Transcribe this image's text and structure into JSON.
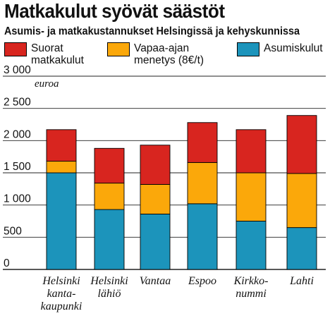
{
  "title": "Matkakulut syövät säästöt",
  "subtitle": "Asumis- ja matkakustannukset Helsingissä ja kehyskunnissa",
  "colors": {
    "suorat": "#d8251f",
    "vapaa": "#fba80a",
    "asumis": "#1c94bb",
    "grid": "#222222"
  },
  "legend": [
    {
      "label": "Suorat\nmatkakulut",
      "color": "#d8251f"
    },
    {
      "label": "Vapaa-ajan\nmenetys (8€/t)",
      "color": "#fba80a"
    },
    {
      "label": "Asumiskulut",
      "color": "#1c94bb"
    }
  ],
  "chart_data": {
    "type": "bar",
    "stacked": true,
    "categories": [
      "Helsinki\nkanta-\nkaupunki",
      "Helsinki\nlähiö",
      "Vantaa",
      "Espoo",
      "Kirkko-\nnummi",
      "Lahti"
    ],
    "series": [
      {
        "name": "Asumiskulut",
        "values": [
          1500,
          930,
          860,
          1020,
          750,
          650
        ]
      },
      {
        "name": "Vapaa-ajan menetys (8€/t)",
        "values": [
          180,
          410,
          460,
          640,
          750,
          840
        ]
      },
      {
        "name": "Suorat matkakulut",
        "values": [
          490,
          540,
          610,
          620,
          670,
          900
        ]
      }
    ],
    "ylim": [
      0,
      3000
    ],
    "yticks": [
      0,
      500,
      1000,
      1500,
      2000,
      2500,
      3000
    ],
    "ytick_labels": [
      "0",
      "500",
      "1 000",
      "1 500",
      "2 000",
      "2 500",
      "3 000"
    ],
    "y_unit_label": "euroa",
    "grid": true
  }
}
